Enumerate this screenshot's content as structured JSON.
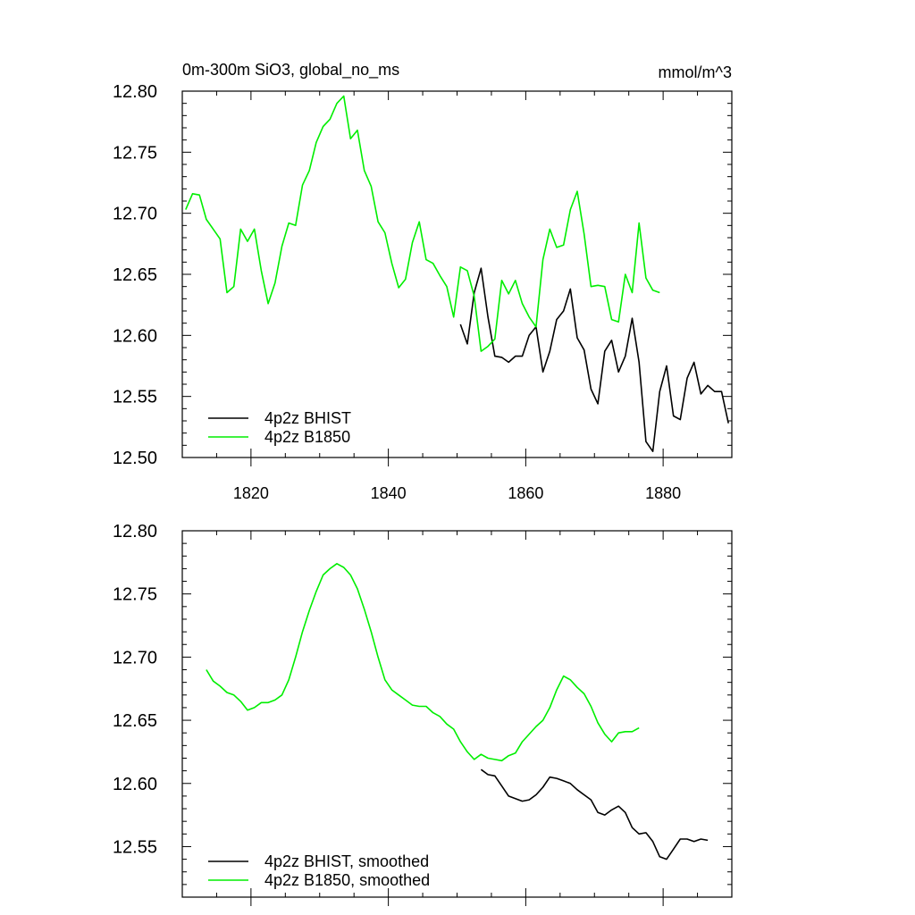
{
  "figure": {
    "title_left": "0m-300m SiO3, global_no_ms",
    "title_right": "mmol/m^3"
  },
  "colors": {
    "bhist": "#000000",
    "b1850": "#00ee00",
    "axis": "#000000"
  },
  "chart_data": [
    {
      "type": "line",
      "panel": "top",
      "xlim": [
        1810,
        1890
      ],
      "ylim": [
        12.5,
        12.8
      ],
      "x_ticks": [
        1820,
        1840,
        1860,
        1880
      ],
      "y_ticks": [
        12.5,
        12.55,
        12.6,
        12.65,
        12.7,
        12.75,
        12.8
      ],
      "x_tick_labels": [
        "1820",
        "1840",
        "1860",
        "1880"
      ],
      "y_tick_labels": [
        "12.50",
        "12.55",
        "12.60",
        "12.65",
        "12.70",
        "12.75",
        "12.80"
      ],
      "legend": [
        "4p2z BHIST",
        "4p2z B1850"
      ],
      "legend_position": "bottom-left",
      "series": [
        {
          "name": "4p2z BHIST",
          "color": "#000000",
          "x": [
            1850.5,
            1851.5,
            1852.5,
            1853.5,
            1854.5,
            1855.5,
            1856.5,
            1857.5,
            1858.5,
            1859.5,
            1860.5,
            1861.5,
            1862.5,
            1863.5,
            1864.5,
            1865.5,
            1866.5,
            1867.5,
            1868.5,
            1869.5,
            1870.5,
            1871.5,
            1872.5,
            1873.5,
            1874.5,
            1875.5,
            1876.5,
            1877.5,
            1878.5,
            1879.5,
            1880.5,
            1881.5,
            1882.5,
            1883.5,
            1884.5,
            1885.5,
            1886.5,
            1887.5,
            1888.5,
            1889.5
          ],
          "y": [
            12.609,
            12.593,
            12.635,
            12.655,
            12.615,
            12.583,
            12.582,
            12.578,
            12.583,
            12.583,
            12.6,
            12.607,
            12.57,
            12.587,
            12.613,
            12.62,
            12.638,
            12.598,
            12.588,
            12.556,
            12.544,
            12.587,
            12.596,
            12.57,
            12.583,
            12.614,
            12.578,
            12.513,
            12.505,
            12.554,
            12.575,
            12.534,
            12.531,
            12.565,
            12.578,
            12.552,
            12.559,
            12.554,
            12.554,
            12.528
          ]
        },
        {
          "name": "4p2z B1850",
          "color": "#00ee00",
          "x": [
            1810.5,
            1811.5,
            1812.5,
            1813.5,
            1814.5,
            1815.5,
            1816.5,
            1817.5,
            1818.5,
            1819.5,
            1820.5,
            1821.5,
            1822.5,
            1823.5,
            1824.5,
            1825.5,
            1826.5,
            1827.5,
            1828.5,
            1829.5,
            1830.5,
            1831.5,
            1832.5,
            1833.5,
            1834.5,
            1835.5,
            1836.5,
            1837.5,
            1838.5,
            1839.5,
            1840.5,
            1841.5,
            1842.5,
            1843.5,
            1844.5,
            1845.5,
            1846.5,
            1847.5,
            1848.5,
            1849.5,
            1850.5,
            1851.5,
            1852.5,
            1853.5,
            1854.5,
            1855.5,
            1856.5,
            1857.5,
            1858.5,
            1859.5,
            1860.5,
            1861.5,
            1862.5,
            1863.5,
            1864.5,
            1865.5,
            1866.5,
            1867.5,
            1868.5,
            1869.5,
            1870.5,
            1871.5,
            1872.5,
            1873.5,
            1874.5,
            1875.5,
            1876.5,
            1877.5,
            1878.5,
            1879.5
          ],
          "y": [
            12.703,
            12.716,
            12.715,
            12.695,
            12.687,
            12.679,
            12.635,
            12.64,
            12.687,
            12.677,
            12.687,
            12.653,
            12.626,
            12.643,
            12.673,
            12.692,
            12.69,
            12.723,
            12.735,
            12.758,
            12.771,
            12.777,
            12.79,
            12.796,
            12.761,
            12.768,
            12.735,
            12.722,
            12.693,
            12.684,
            12.659,
            12.639,
            12.646,
            12.676,
            12.693,
            12.662,
            12.659,
            12.649,
            12.64,
            12.615,
            12.656,
            12.653,
            12.632,
            12.587,
            12.591,
            12.597,
            12.645,
            12.634,
            12.645,
            12.626,
            12.615,
            12.607,
            12.662,
            12.687,
            12.672,
            12.674,
            12.703,
            12.718,
            12.683,
            12.64,
            12.641,
            12.64,
            12.613,
            12.611,
            12.65,
            12.635,
            12.692,
            12.647,
            12.637,
            12.635
          ]
        }
      ]
    },
    {
      "type": "line",
      "panel": "bottom",
      "xlim": [
        1810,
        1890
      ],
      "ylim": [
        12.51,
        12.8
      ],
      "x_ticks": [
        1820,
        1840,
        1860,
        1880
      ],
      "y_ticks": [
        12.55,
        12.6,
        12.65,
        12.7,
        12.75,
        12.8
      ],
      "y_tick_labels": [
        "12.55",
        "12.60",
        "12.65",
        "12.70",
        "12.75",
        "12.80"
      ],
      "legend": [
        "4p2z BHIST, smoothed",
        "4p2z B1850, smoothed"
      ],
      "legend_position": "bottom-left",
      "series": [
        {
          "name": "4p2z BHIST, smoothed",
          "color": "#000000",
          "x": [
            1853.5,
            1854.5,
            1855.5,
            1856.5,
            1857.5,
            1858.5,
            1859.5,
            1860.5,
            1861.5,
            1862.5,
            1863.5,
            1864.5,
            1865.5,
            1866.5,
            1867.5,
            1868.5,
            1869.5,
            1870.5,
            1871.5,
            1872.5,
            1873.5,
            1874.5,
            1875.5,
            1876.5,
            1877.5,
            1878.5,
            1879.5,
            1880.5,
            1881.5,
            1882.5,
            1883.5,
            1884.5,
            1885.5,
            1886.5
          ],
          "y": [
            12.611,
            12.607,
            12.606,
            12.598,
            12.59,
            12.588,
            12.586,
            12.587,
            12.591,
            12.597,
            12.605,
            12.604,
            12.602,
            12.6,
            12.595,
            12.591,
            12.587,
            12.577,
            12.575,
            12.579,
            12.582,
            12.577,
            12.565,
            12.56,
            12.561,
            12.554,
            12.542,
            12.54,
            12.548,
            12.556,
            12.556,
            12.554,
            12.556,
            12.555
          ]
        },
        {
          "name": "4p2z B1850, smoothed",
          "color": "#00ee00",
          "x": [
            1813.5,
            1814.5,
            1815.5,
            1816.5,
            1817.5,
            1818.5,
            1819.5,
            1820.5,
            1821.5,
            1822.5,
            1823.5,
            1824.5,
            1825.5,
            1826.5,
            1827.5,
            1828.5,
            1829.5,
            1830.5,
            1831.5,
            1832.5,
            1833.5,
            1834.5,
            1835.5,
            1836.5,
            1837.5,
            1838.5,
            1839.5,
            1840.5,
            1841.5,
            1842.5,
            1843.5,
            1844.5,
            1845.5,
            1846.5,
            1847.5,
            1848.5,
            1849.5,
            1850.5,
            1851.5,
            1852.5,
            1853.5,
            1854.5,
            1855.5,
            1856.5,
            1857.5,
            1858.5,
            1859.5,
            1860.5,
            1861.5,
            1862.5,
            1863.5,
            1864.5,
            1865.5,
            1866.5,
            1867.5,
            1868.5,
            1869.5,
            1870.5,
            1871.5,
            1872.5,
            1873.5,
            1874.5,
            1875.5,
            1876.5
          ],
          "y": [
            12.69,
            12.681,
            12.677,
            12.672,
            12.67,
            12.665,
            12.658,
            12.66,
            12.664,
            12.664,
            12.666,
            12.67,
            12.682,
            12.7,
            12.72,
            12.737,
            12.752,
            12.765,
            12.77,
            12.774,
            12.771,
            12.765,
            12.754,
            12.738,
            12.72,
            12.7,
            12.682,
            12.674,
            12.67,
            12.666,
            12.662,
            12.661,
            12.661,
            12.656,
            12.653,
            12.647,
            12.643,
            12.633,
            12.625,
            12.619,
            12.623,
            12.62,
            12.619,
            12.618,
            12.622,
            12.624,
            12.633,
            12.639,
            12.645,
            12.65,
            12.66,
            12.674,
            12.685,
            12.682,
            12.676,
            12.671,
            12.661,
            12.648,
            12.639,
            12.633,
            12.64,
            12.641,
            12.641,
            12.644
          ]
        }
      ]
    }
  ]
}
